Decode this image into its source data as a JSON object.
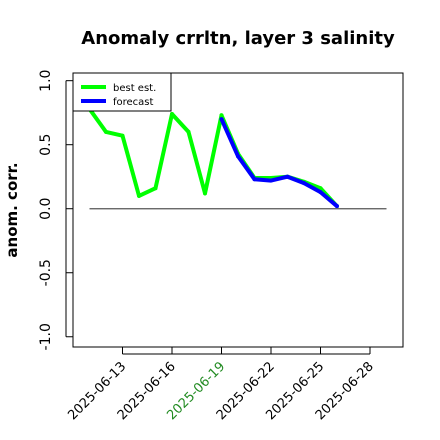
{
  "chart_data": {
    "type": "line",
    "title": "Anomaly crrltn, layer 3 salinity",
    "ylabel": "anom. corr.",
    "xlabel": "",
    "ylim": [
      -1.0,
      1.0
    ],
    "xlim": [
      "2025-06-10",
      "2025-06-30"
    ],
    "y_ticks": [
      {
        "value": 1.0,
        "label": "1.0"
      },
      {
        "value": 0.5,
        "label": "0.5"
      },
      {
        "value": 0.0,
        "label": "0.0"
      },
      {
        "value": -0.5,
        "label": "-0.5"
      },
      {
        "value": -1.0,
        "label": "-1.0"
      }
    ],
    "x_ticks": [
      {
        "date": "2025-06-13",
        "label": "2025-06-13",
        "color": "#000000"
      },
      {
        "date": "2025-06-16",
        "label": "2025-06-16",
        "color": "#000000"
      },
      {
        "date": "2025-06-19",
        "label": "2025-06-19",
        "color": "#228b22"
      },
      {
        "date": "2025-06-22",
        "label": "2025-06-22",
        "color": "#000000"
      },
      {
        "date": "2025-06-25",
        "label": "2025-06-25",
        "color": "#000000"
      },
      {
        "date": "2025-06-28",
        "label": "2025-06-28",
        "color": "#000000"
      }
    ],
    "reference_line": {
      "y": 0.0,
      "from": "2025-06-11",
      "to": "2025-06-29",
      "color": "#555555"
    },
    "series": [
      {
        "name": "best est.",
        "color": "#00ff00",
        "points": [
          {
            "x": "2025-06-11",
            "y": 0.78
          },
          {
            "x": "2025-06-12",
            "y": 0.6
          },
          {
            "x": "2025-06-13",
            "y": 0.57
          },
          {
            "x": "2025-06-14",
            "y": 0.1
          },
          {
            "x": "2025-06-15",
            "y": 0.16
          },
          {
            "x": "2025-06-16",
            "y": 0.74
          },
          {
            "x": "2025-06-17",
            "y": 0.6
          },
          {
            "x": "2025-06-18",
            "y": 0.12
          },
          {
            "x": "2025-06-19",
            "y": 0.73
          },
          {
            "x": "2025-06-20",
            "y": 0.43
          },
          {
            "x": "2025-06-21",
            "y": 0.24
          },
          {
            "x": "2025-06-22",
            "y": 0.24
          },
          {
            "x": "2025-06-23",
            "y": 0.25
          },
          {
            "x": "2025-06-24",
            "y": 0.21
          },
          {
            "x": "2025-06-25",
            "y": 0.16
          },
          {
            "x": "2025-06-26",
            "y": 0.02
          }
        ]
      },
      {
        "name": "forecast",
        "color": "#0000ff",
        "points": [
          {
            "x": "2025-06-19",
            "y": 0.7
          },
          {
            "x": "2025-06-20",
            "y": 0.41
          },
          {
            "x": "2025-06-21",
            "y": 0.23
          },
          {
            "x": "2025-06-22",
            "y": 0.22
          },
          {
            "x": "2025-06-23",
            "y": 0.25
          },
          {
            "x": "2025-06-24",
            "y": 0.2
          },
          {
            "x": "2025-06-25",
            "y": 0.13
          },
          {
            "x": "2025-06-26",
            "y": 0.02
          }
        ]
      }
    ],
    "legend": {
      "position": "top-left"
    },
    "grid": false
  }
}
